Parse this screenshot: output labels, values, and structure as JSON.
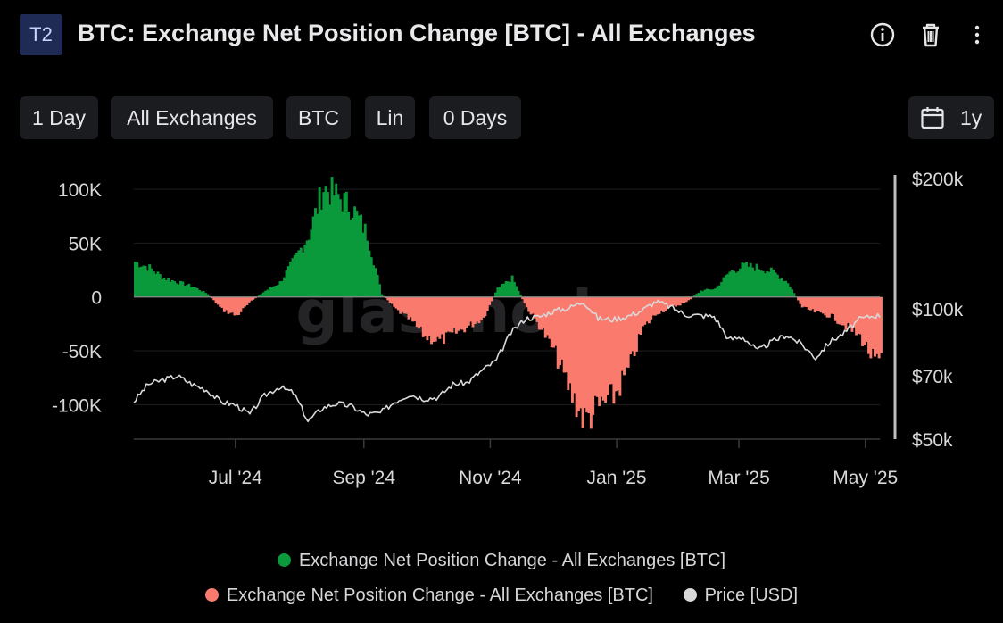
{
  "header": {
    "badge": "T2",
    "title": "BTC: Exchange Net Position Change [BTC] - All Exchanges",
    "icons": [
      "info-icon",
      "trash-icon",
      "more-vertical-icon"
    ]
  },
  "toolbar": {
    "resolution": "1 Day",
    "exchange": "All Exchanges",
    "currency": "BTC",
    "scale": "Lin",
    "moving_average": "0 Days",
    "range": "1y",
    "range_icon": "calendar-icon"
  },
  "legend": {
    "positive": "Exchange Net Position Change - All Exchanges [BTC]",
    "negative": "Exchange Net Position Change - All Exchanges [BTC]",
    "price": "Price [USD]"
  },
  "colors": {
    "positive": "#0a9a3c",
    "negative": "#fa7b6e",
    "price": "#d9d9d9",
    "grid": "#1e1e22",
    "badge_bg": "#1f2a55"
  },
  "chart_data": {
    "type": "bar",
    "watermark": "glassnode",
    "x_range": [
      "2024-05-13",
      "2025-05-08"
    ],
    "x_ticks": [
      {
        "label": "Jul '24",
        "date": "2024-07-01"
      },
      {
        "label": "Sep '24",
        "date": "2024-09-01"
      },
      {
        "label": "Nov '24",
        "date": "2024-11-01"
      },
      {
        "label": "Jan '25",
        "date": "2025-01-01"
      },
      {
        "label": "Mar '25",
        "date": "2025-03-01"
      },
      {
        "label": "May '25",
        "date": "2025-05-01"
      }
    ],
    "y_left": {
      "range": [
        -132000,
        110000
      ],
      "ticks": [
        100000,
        50000,
        0,
        -50000,
        -100000
      ],
      "tick_labels": [
        "100K",
        "50K",
        "0",
        "-50K",
        "-100K"
      ]
    },
    "y_right": {
      "scale": "log",
      "range": [
        50000,
        200000
      ],
      "ticks": [
        200000,
        100000,
        70000,
        50000
      ],
      "tick_labels": [
        "$200k",
        "$100k",
        "$70k",
        "$50k"
      ]
    },
    "series": [
      {
        "name": "Exchange Net Position Change - All Exchanges [BTC]",
        "axis": "left",
        "style": "bars",
        "points": [
          [
            "2024-05-13",
            34000
          ],
          [
            "2024-05-20",
            28000
          ],
          [
            "2024-05-27",
            18000
          ],
          [
            "2024-06-03",
            14000
          ],
          [
            "2024-06-10",
            10000
          ],
          [
            "2024-06-17",
            3000
          ],
          [
            "2024-06-24",
            -12000
          ],
          [
            "2024-07-01",
            -18000
          ],
          [
            "2024-07-08",
            -4000
          ],
          [
            "2024-07-15",
            6000
          ],
          [
            "2024-07-22",
            14000
          ],
          [
            "2024-07-29",
            36000
          ],
          [
            "2024-08-05",
            60000
          ],
          [
            "2024-08-12",
            105000
          ],
          [
            "2024-08-19",
            96000
          ],
          [
            "2024-08-26",
            85000
          ],
          [
            "2024-09-02",
            60000
          ],
          [
            "2024-09-09",
            3000
          ],
          [
            "2024-09-16",
            -12000
          ],
          [
            "2024-09-23",
            -22000
          ],
          [
            "2024-09-30",
            -38000
          ],
          [
            "2024-10-07",
            -42000
          ],
          [
            "2024-10-14",
            -35000
          ],
          [
            "2024-10-21",
            -28000
          ],
          [
            "2024-10-28",
            -20000
          ],
          [
            "2024-11-04",
            8000
          ],
          [
            "2024-11-11",
            18000
          ],
          [
            "2024-11-18",
            -10000
          ],
          [
            "2024-11-25",
            -30000
          ],
          [
            "2024-12-02",
            -55000
          ],
          [
            "2024-12-09",
            -90000
          ],
          [
            "2024-12-16",
            -118000
          ],
          [
            "2024-12-23",
            -105000
          ],
          [
            "2024-12-30",
            -95000
          ],
          [
            "2025-01-06",
            -70000
          ],
          [
            "2025-01-13",
            -30000
          ],
          [
            "2025-01-20",
            -15000
          ],
          [
            "2025-01-27",
            -10000
          ],
          [
            "2025-02-03",
            -5000
          ],
          [
            "2025-02-10",
            6000
          ],
          [
            "2025-02-17",
            8000
          ],
          [
            "2025-02-24",
            24000
          ],
          [
            "2025-03-03",
            30000
          ],
          [
            "2025-03-10",
            28000
          ],
          [
            "2025-03-17",
            24000
          ],
          [
            "2025-03-24",
            14000
          ],
          [
            "2025-03-31",
            -10000
          ],
          [
            "2025-04-07",
            -15000
          ],
          [
            "2025-04-14",
            -18000
          ],
          [
            "2025-04-21",
            -28000
          ],
          [
            "2025-04-28",
            -38000
          ],
          [
            "2025-05-05",
            -62000
          ]
        ]
      },
      {
        "name": "Price [USD]",
        "axis": "right",
        "style": "line",
        "points": [
          [
            "2024-05-13",
            61000
          ],
          [
            "2024-05-20",
            67000
          ],
          [
            "2024-05-27",
            68500
          ],
          [
            "2024-06-03",
            70000
          ],
          [
            "2024-06-10",
            67000
          ],
          [
            "2024-06-17",
            65000
          ],
          [
            "2024-06-24",
            61000
          ],
          [
            "2024-07-01",
            60000
          ],
          [
            "2024-07-08",
            57000
          ],
          [
            "2024-07-15",
            63000
          ],
          [
            "2024-07-22",
            66000
          ],
          [
            "2024-07-29",
            64000
          ],
          [
            "2024-08-05",
            55000
          ],
          [
            "2024-08-12",
            59000
          ],
          [
            "2024-08-19",
            60500
          ],
          [
            "2024-08-26",
            59500
          ],
          [
            "2024-09-02",
            57000
          ],
          [
            "2024-09-09",
            57500
          ],
          [
            "2024-09-16",
            61000
          ],
          [
            "2024-09-23",
            63500
          ],
          [
            "2024-09-30",
            62000
          ],
          [
            "2024-10-07",
            62500
          ],
          [
            "2024-10-14",
            67000
          ],
          [
            "2024-10-21",
            67500
          ],
          [
            "2024-10-28",
            72000
          ],
          [
            "2024-11-04",
            76000
          ],
          [
            "2024-11-11",
            88000
          ],
          [
            "2024-11-18",
            95000
          ],
          [
            "2024-11-25",
            96000
          ],
          [
            "2024-12-02",
            99000
          ],
          [
            "2024-12-09",
            100500
          ],
          [
            "2024-12-16",
            104000
          ],
          [
            "2024-12-23",
            95000
          ],
          [
            "2024-12-30",
            94500
          ],
          [
            "2025-01-06",
            96000
          ],
          [
            "2025-01-13",
            99000
          ],
          [
            "2025-01-20",
            104000
          ],
          [
            "2025-01-27",
            101000
          ],
          [
            "2025-02-03",
            97000
          ],
          [
            "2025-02-10",
            96500
          ],
          [
            "2025-02-17",
            96000
          ],
          [
            "2025-02-24",
            85000
          ],
          [
            "2025-03-03",
            86000
          ],
          [
            "2025-03-10",
            80000
          ],
          [
            "2025-03-17",
            84000
          ],
          [
            "2025-03-24",
            87000
          ],
          [
            "2025-03-31",
            83000
          ],
          [
            "2025-04-07",
            77000
          ],
          [
            "2025-04-14",
            84000
          ],
          [
            "2025-04-21",
            88000
          ],
          [
            "2025-04-28",
            94500
          ],
          [
            "2025-05-05",
            96500
          ]
        ]
      }
    ]
  }
}
